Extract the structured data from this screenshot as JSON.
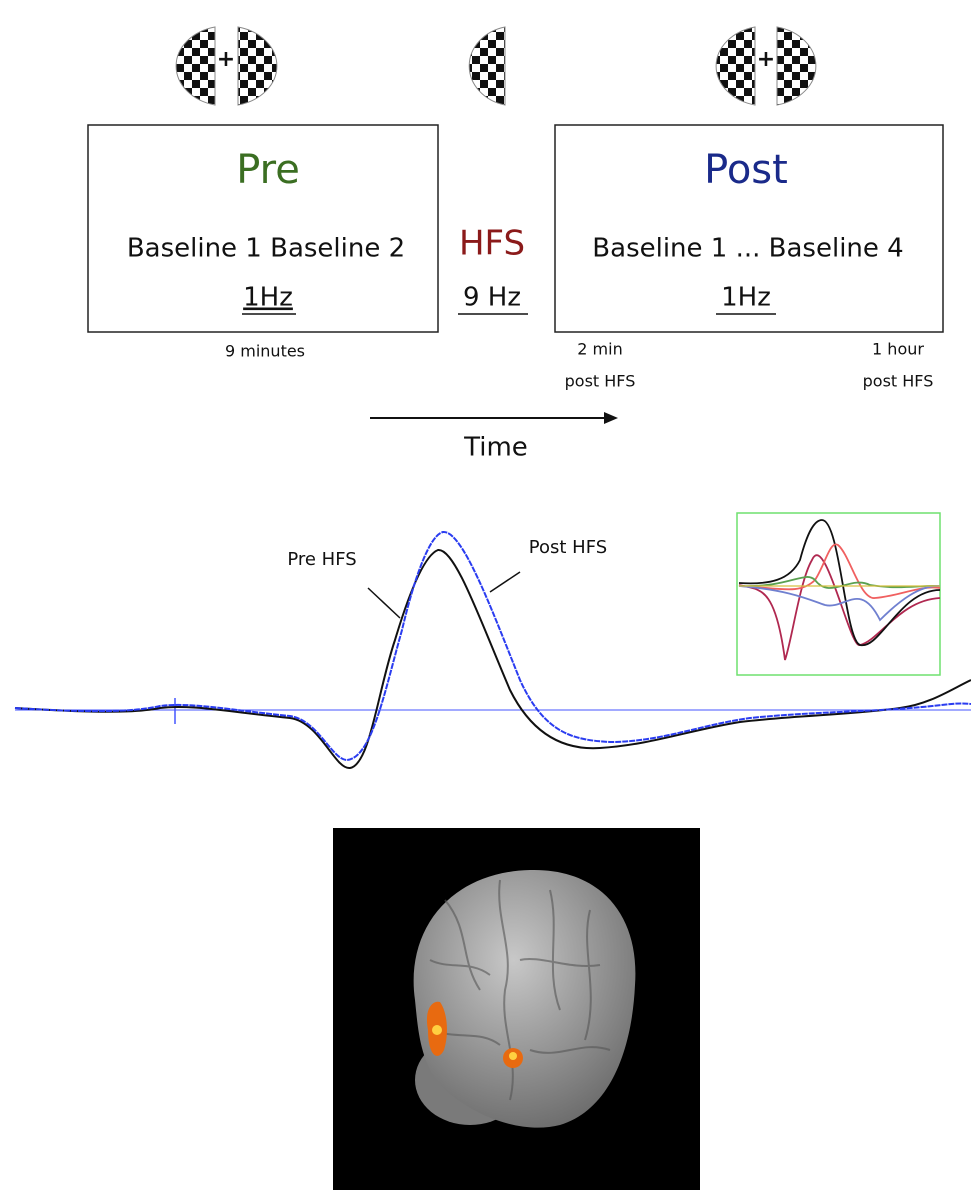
{
  "pre_box": {
    "title": "Pre",
    "baselines": "Baseline 1 Baseline 2",
    "frequency": "1Hz"
  },
  "hfs": {
    "title": "HFS",
    "frequency": "9 Hz"
  },
  "post_box": {
    "title": "Post",
    "baselines": "Baseline 1 ... Baseline 4",
    "frequency": "1Hz"
  },
  "timing": {
    "pre_duration": "9 minutes",
    "post_start": [
      "2 min",
      "post HFS"
    ],
    "post_end": [
      "1 hour",
      "post HFS"
    ]
  },
  "time_axis": "Time",
  "erp": {
    "labels": [
      "Pre HFS",
      "Post HFS"
    ]
  }
}
